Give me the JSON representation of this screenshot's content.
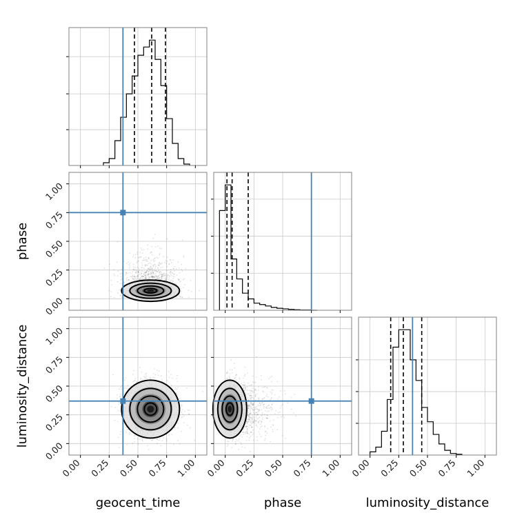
{
  "chart_data": {
    "type": "corner",
    "parameters": [
      {
        "label": "geocent_time",
        "truth": 0.37,
        "quantiles": [
          0.47,
          0.62,
          0.74
        ]
      },
      {
        "label": "phase",
        "truth": 0.75,
        "quantiles": [
          0.015,
          0.06,
          0.2
        ]
      },
      {
        "label": "luminosity_distance",
        "truth": 0.37,
        "quantiles": [
          0.18,
          0.29,
          0.45
        ]
      }
    ],
    "range": [
      -0.1,
      1.1
    ],
    "ticks": [
      0.0,
      0.25,
      0.5,
      0.75,
      1.0
    ],
    "tick_labels": [
      "0.00",
      "0.25",
      "0.50",
      "0.75",
      "1.00"
    ],
    "grid": true,
    "truth_color": "#4682b4",
    "contour_color": "#000000",
    "histograms": [
      {
        "parameter": "geocent_time",
        "bin_edges": [
          0.2,
          0.25,
          0.3,
          0.35,
          0.4,
          0.45,
          0.5,
          0.55,
          0.6,
          0.65,
          0.7,
          0.75,
          0.8,
          0.85,
          0.9,
          0.95
        ],
        "counts": [
          0.02,
          0.05,
          0.18,
          0.35,
          0.52,
          0.65,
          0.8,
          0.86,
          0.91,
          0.77,
          0.58,
          0.34,
          0.16,
          0.05,
          0.01
        ],
        "yticks": [
          0.26,
          0.52,
          0.79
        ]
      },
      {
        "parameter": "phase",
        "bin_edges": [
          -0.05,
          0.0,
          0.05,
          0.1,
          0.15,
          0.2,
          0.25,
          0.3,
          0.35,
          0.4,
          0.45,
          0.5,
          0.55,
          0.6,
          0.65,
          0.7,
          0.75,
          0.8
        ],
        "counts": [
          0.35,
          0.44,
          0.18,
          0.11,
          0.06,
          0.04,
          0.025,
          0.02,
          0.015,
          0.01,
          0.007,
          0.005,
          0.003,
          0.002,
          0.001,
          0.001,
          0.0
        ],
        "yticks": [
          0.13,
          0.26,
          0.39
        ]
      },
      {
        "parameter": "luminosity_distance",
        "bin_edges": [
          0.0,
          0.05,
          0.1,
          0.15,
          0.2,
          0.25,
          0.3,
          0.35,
          0.4,
          0.45,
          0.5,
          0.55,
          0.6,
          0.65,
          0.7,
          0.75,
          0.8
        ],
        "counts": [
          0.02,
          0.05,
          0.15,
          0.35,
          0.68,
          0.79,
          0.79,
          0.6,
          0.47,
          0.3,
          0.21,
          0.13,
          0.07,
          0.03,
          0.01,
          0.005
        ],
        "yticks": [
          0.2,
          0.4,
          0.6
        ]
      }
    ],
    "scatter_panels": [
      {
        "x_param": "geocent_time",
        "y_param": "phase",
        "x_mean": 0.61,
        "y_mean": 0.07,
        "x_sd": 0.12,
        "y_sd": 0.08
      },
      {
        "x_param": "geocent_time",
        "y_param": "luminosity_distance",
        "x_mean": 0.61,
        "y_mean": 0.3,
        "x_sd": 0.12,
        "y_sd": 0.12
      },
      {
        "x_param": "phase",
        "y_param": "luminosity_distance",
        "x_mean": 0.04,
        "y_mean": 0.3,
        "x_sd": 0.1,
        "y_sd": 0.12
      }
    ]
  }
}
